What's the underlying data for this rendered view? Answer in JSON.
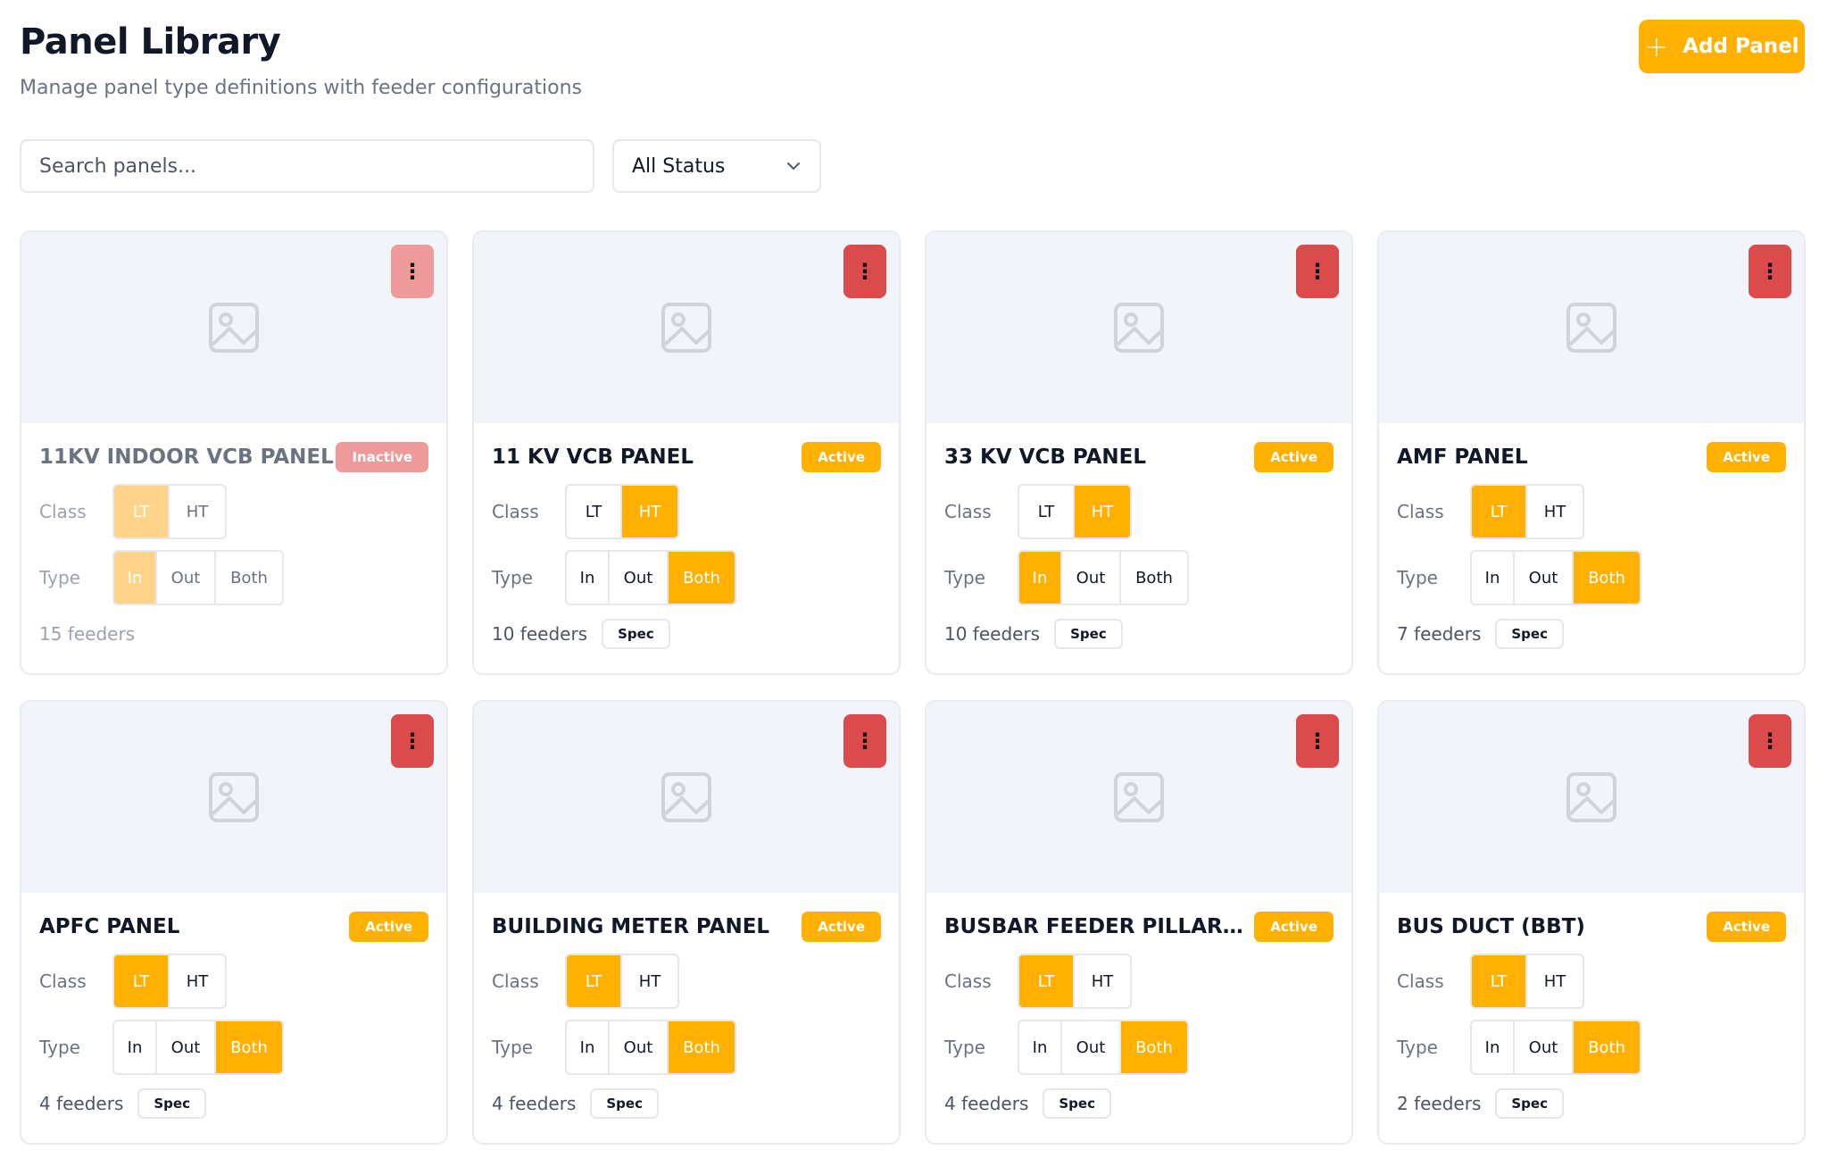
{
  "header": {
    "title": "Panel Library",
    "subtitle": "Manage panel type definitions with feeder configurations",
    "add_button_label": "Add Panel"
  },
  "search": {
    "placeholder": "Search panels..."
  },
  "filter": {
    "status_selected": "All Status"
  },
  "labels": {
    "class": "Class",
    "type": "Type",
    "spec": "Spec",
    "lt": "LT",
    "ht": "HT",
    "in": "In",
    "out": "Out",
    "both": "Both"
  },
  "icons": {
    "image_placeholder": "image-icon",
    "menu": "kebab-menu-icon",
    "add": "plus-icon",
    "dropdown": "chevron-down-icon"
  },
  "colors": {
    "accent": "#ffb000",
    "danger": "#dc4b4b",
    "inactive": "#ee9a9a"
  },
  "panels": [
    {
      "name": "11KV INDOOR VCB PANEL",
      "status": "Inactive",
      "class_selected": "LT",
      "type_selected": "In",
      "feeders": "15 feeders",
      "show_spec": false
    },
    {
      "name": "11 KV VCB PANEL",
      "status": "Active",
      "class_selected": "HT",
      "type_selected": "Both",
      "feeders": "10 feeders",
      "show_spec": true
    },
    {
      "name": "33 KV VCB PANEL",
      "status": "Active",
      "class_selected": "HT",
      "type_selected": "In",
      "feeders": "10 feeders",
      "show_spec": true
    },
    {
      "name": "AMF PANEL",
      "status": "Active",
      "class_selected": "LT",
      "type_selected": "Both",
      "feeders": "7 feeders",
      "show_spec": true
    },
    {
      "name": "APFC PANEL",
      "status": "Active",
      "class_selected": "LT",
      "type_selected": "Both",
      "feeders": "4 feeders",
      "show_spec": true
    },
    {
      "name": "BUILDING METER PANEL",
      "status": "Active",
      "class_selected": "LT",
      "type_selected": "Both",
      "feeders": "4 feeders",
      "show_spec": true
    },
    {
      "name": "BUSBAR FEEDER PILLAR ENCLOSURE",
      "status": "Active",
      "class_selected": "LT",
      "type_selected": "Both",
      "feeders": "4 feeders",
      "show_spec": true
    },
    {
      "name": "BUS DUCT (BBT)",
      "status": "Active",
      "class_selected": "LT",
      "type_selected": "Both",
      "feeders": "2 feeders",
      "show_spec": true
    }
  ]
}
